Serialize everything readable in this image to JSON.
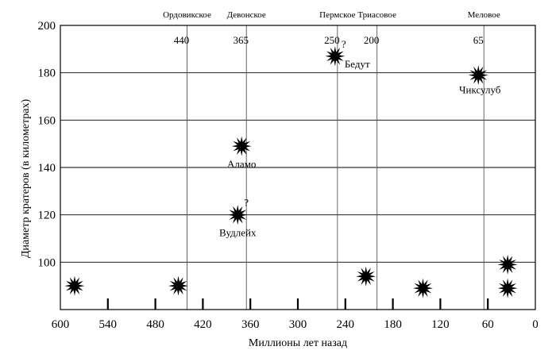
{
  "chart_data": {
    "type": "scatter",
    "xlabel": "Миллионы лет назад",
    "ylabel": "Диаметр кратеров (в километрах)",
    "xlim": [
      600,
      0
    ],
    "ylim": [
      80,
      200
    ],
    "x_ticks": [
      600,
      540,
      480,
      420,
      360,
      300,
      240,
      180,
      120,
      60,
      0
    ],
    "y_ticks": [
      100,
      120,
      140,
      160,
      180,
      200
    ],
    "grid": "horizontal",
    "extinction_events": [
      {
        "name": "Ордовикское",
        "age": 440
      },
      {
        "name": "Девонское",
        "age": 365
      },
      {
        "name": "Пермское",
        "age": 250
      },
      {
        "name": "Триасовое",
        "age": 200
      },
      {
        "name": "Меловое",
        "age": 65
      }
    ],
    "craters": [
      {
        "x": 582,
        "y": 90,
        "label": ""
      },
      {
        "x": 451,
        "y": 90,
        "label": ""
      },
      {
        "x": 371,
        "y": 149,
        "label": "Аламо"
      },
      {
        "x": 376,
        "y": 120,
        "label": "Вудлейх",
        "question": "?"
      },
      {
        "x": 253,
        "y": 187,
        "label": "Бедут",
        "question": "?"
      },
      {
        "x": 214,
        "y": 94,
        "label": ""
      },
      {
        "x": 142,
        "y": 89,
        "label": ""
      },
      {
        "x": 72,
        "y": 179,
        "label": "Чиксулуб"
      },
      {
        "x": 35,
        "y": 99,
        "label": ""
      },
      {
        "x": 35,
        "y": 89,
        "label": ""
      }
    ]
  }
}
